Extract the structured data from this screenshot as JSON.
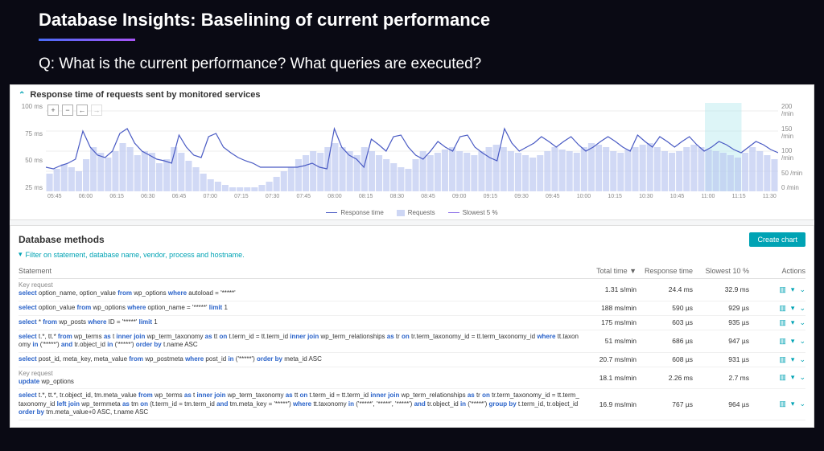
{
  "slide": {
    "title": "Database Insights: Baselining of current performance",
    "question": "Q: What is the current performance? What queries are executed?"
  },
  "chart_panel": {
    "title": "Response time of requests sent by monitored services",
    "y_left_ticks": [
      "100 ms",
      "75 ms",
      "50 ms",
      "25 ms"
    ],
    "y_right_ticks": [
      "200 /min",
      "150 /min",
      "100 /min",
      "50 /min",
      "0 /min"
    ],
    "x_ticks": [
      "05:45",
      "06:00",
      "06:15",
      "06:30",
      "06:45",
      "07:00",
      "07:15",
      "07:30",
      "07:45",
      "08:00",
      "08:15",
      "08:30",
      "08:45",
      "09:00",
      "09:15",
      "09:30",
      "09:45",
      "10:00",
      "10:15",
      "10:30",
      "10:45",
      "11:00",
      "11:15",
      "11:30"
    ],
    "legend": [
      {
        "label": "Response time",
        "type": "line",
        "color": "#4a5bc4"
      },
      {
        "label": "Requests",
        "type": "bar",
        "color": "#b8c4f0"
      },
      {
        "label": "Slowest 5 %",
        "type": "line",
        "color": "#8a6de8"
      }
    ],
    "colors": {
      "bar": "#b8c4f0",
      "line": "#4a5bc4",
      "grid": "#eeeeee",
      "highlight": "#9de3e8",
      "bg": "#ffffff"
    },
    "ylim_left": [
      0,
      100
    ],
    "ylim_right": [
      0,
      200
    ],
    "highlight_range": [
      0.9,
      0.95
    ],
    "bars": [
      22,
      28,
      34,
      30,
      25,
      40,
      55,
      48,
      42,
      50,
      60,
      55,
      45,
      50,
      48,
      35,
      40,
      55,
      48,
      38,
      30,
      22,
      15,
      12,
      8,
      5,
      5,
      5,
      5,
      8,
      12,
      18,
      25,
      30,
      40,
      45,
      50,
      48,
      55,
      60,
      55,
      50,
      45,
      55,
      50,
      45,
      40,
      35,
      30,
      28,
      40,
      50,
      45,
      48,
      52,
      55,
      50,
      48,
      45,
      50,
      55,
      58,
      55,
      50,
      48,
      45,
      42,
      45,
      50,
      55,
      52,
      50,
      48,
      55,
      60,
      58,
      55,
      50,
      48,
      52,
      55,
      58,
      60,
      55,
      50,
      48,
      50,
      55,
      58,
      55,
      52,
      50,
      48,
      45,
      42,
      48,
      55,
      50,
      45,
      40
    ],
    "line": [
      30,
      28,
      32,
      35,
      40,
      75,
      55,
      45,
      42,
      50,
      72,
      78,
      60,
      50,
      45,
      40,
      38,
      35,
      70,
      55,
      45,
      42,
      68,
      72,
      55,
      48,
      42,
      38,
      35,
      30,
      30,
      30,
      30,
      30,
      30,
      32,
      35,
      30,
      28,
      78,
      55,
      45,
      40,
      30,
      65,
      58,
      50,
      68,
      70,
      55,
      45,
      40,
      50,
      62,
      55,
      50,
      68,
      70,
      55,
      48,
      42,
      38,
      78,
      60,
      50,
      55,
      60,
      68,
      62,
      55,
      62,
      68,
      58,
      50,
      55,
      62,
      68,
      62,
      55,
      50,
      70,
      62,
      55,
      68,
      62,
      55,
      62,
      68,
      58,
      50,
      55,
      62,
      58,
      52,
      48,
      55,
      62,
      58,
      52,
      48
    ]
  },
  "methods_panel": {
    "title": "Database methods",
    "create_chart_label": "Create chart",
    "filter_hint": "Filter on statement, database name, vendor, process and hostname.",
    "columns": [
      "Statement",
      "Total time ▼",
      "Response time",
      "Slowest 10 %",
      "Actions"
    ],
    "rows": [
      {
        "key_request": "Key request",
        "sql_parts": [
          {
            "t": "kw",
            "v": "select "
          },
          {
            "t": "",
            "v": "option_name, option_value "
          },
          {
            "t": "kw",
            "v": "from "
          },
          {
            "t": "",
            "v": "wp_options "
          },
          {
            "t": "kw",
            "v": "where "
          },
          {
            "t": "",
            "v": "autoload = '*****'"
          }
        ],
        "total_time": "1.31 s/min",
        "response_time": "24.4 ms",
        "slowest": "32.9 ms"
      },
      {
        "sql_parts": [
          {
            "t": "kw",
            "v": "select "
          },
          {
            "t": "",
            "v": "option_value "
          },
          {
            "t": "kw",
            "v": "from "
          },
          {
            "t": "",
            "v": "wp_options "
          },
          {
            "t": "kw",
            "v": "where "
          },
          {
            "t": "",
            "v": "option_name = '*****' "
          },
          {
            "t": "kw",
            "v": "limit "
          },
          {
            "t": "",
            "v": "1"
          }
        ],
        "total_time": "188 ms/min",
        "response_time": "590 µs",
        "slowest": "929 µs"
      },
      {
        "sql_parts": [
          {
            "t": "kw",
            "v": "select "
          },
          {
            "t": "",
            "v": "* "
          },
          {
            "t": "kw",
            "v": "from "
          },
          {
            "t": "",
            "v": "wp_posts "
          },
          {
            "t": "kw",
            "v": "where "
          },
          {
            "t": "",
            "v": "ID = '*****' "
          },
          {
            "t": "kw",
            "v": "limit "
          },
          {
            "t": "",
            "v": "1"
          }
        ],
        "total_time": "175 ms/min",
        "response_time": "603 µs",
        "slowest": "935 µs"
      },
      {
        "sql_parts": [
          {
            "t": "kw",
            "v": "select "
          },
          {
            "t": "",
            "v": "t.*, tt.* "
          },
          {
            "t": "kw",
            "v": "from "
          },
          {
            "t": "",
            "v": "wp_terms "
          },
          {
            "t": "kw",
            "v": "as "
          },
          {
            "t": "",
            "v": "t "
          },
          {
            "t": "kw",
            "v": "inner join "
          },
          {
            "t": "",
            "v": "wp_term_taxonomy "
          },
          {
            "t": "kw",
            "v": "as "
          },
          {
            "t": "",
            "v": "tt "
          },
          {
            "t": "kw",
            "v": "on "
          },
          {
            "t": "",
            "v": "t.term_id = tt.term_id "
          },
          {
            "t": "kw",
            "v": "inner join "
          },
          {
            "t": "",
            "v": "wp_term_relationships "
          },
          {
            "t": "kw",
            "v": "as "
          },
          {
            "t": "",
            "v": "tr "
          },
          {
            "t": "kw",
            "v": "on "
          },
          {
            "t": "",
            "v": "tr.term_taxonomy_id = tt.term_taxonomy_id "
          },
          {
            "t": "kw",
            "v": "where "
          },
          {
            "t": "",
            "v": "tt.taxonomy "
          },
          {
            "t": "kw",
            "v": "in "
          },
          {
            "t": "",
            "v": "('*****') "
          },
          {
            "t": "kw",
            "v": "and "
          },
          {
            "t": "",
            "v": "tr.object_id "
          },
          {
            "t": "kw",
            "v": "in "
          },
          {
            "t": "",
            "v": "('*****') "
          },
          {
            "t": "kw",
            "v": "order by "
          },
          {
            "t": "",
            "v": "t.name ASC"
          }
        ],
        "total_time": "51 ms/min",
        "response_time": "686 µs",
        "slowest": "947 µs"
      },
      {
        "sql_parts": [
          {
            "t": "kw",
            "v": "select "
          },
          {
            "t": "",
            "v": "post_id, meta_key, meta_value "
          },
          {
            "t": "kw",
            "v": "from "
          },
          {
            "t": "",
            "v": "wp_postmeta "
          },
          {
            "t": "kw",
            "v": "where "
          },
          {
            "t": "",
            "v": "post_id "
          },
          {
            "t": "kw",
            "v": "in "
          },
          {
            "t": "",
            "v": "('*****') "
          },
          {
            "t": "kw",
            "v": "order by "
          },
          {
            "t": "",
            "v": "meta_id ASC"
          }
        ],
        "total_time": "20.7 ms/min",
        "response_time": "608 µs",
        "slowest": "931 µs"
      },
      {
        "key_request": "Key request",
        "sql_parts": [
          {
            "t": "kw",
            "v": "update "
          },
          {
            "t": "",
            "v": "wp_options"
          }
        ],
        "total_time": "18.1 ms/min",
        "response_time": "2.26 ms",
        "slowest": "2.7 ms"
      },
      {
        "sql_parts": [
          {
            "t": "kw",
            "v": "select "
          },
          {
            "t": "",
            "v": "t.*, tt.*, tr.object_id, tm.meta_value "
          },
          {
            "t": "kw",
            "v": "from "
          },
          {
            "t": "",
            "v": "wp_terms "
          },
          {
            "t": "kw",
            "v": "as "
          },
          {
            "t": "",
            "v": "t "
          },
          {
            "t": "kw",
            "v": "inner join "
          },
          {
            "t": "",
            "v": "wp_term_taxonomy "
          },
          {
            "t": "kw",
            "v": "as "
          },
          {
            "t": "",
            "v": "tt "
          },
          {
            "t": "kw",
            "v": "on "
          },
          {
            "t": "",
            "v": "t.term_id = tt.term_id "
          },
          {
            "t": "kw",
            "v": "inner join "
          },
          {
            "t": "",
            "v": "wp_term_relationships "
          },
          {
            "t": "kw",
            "v": "as "
          },
          {
            "t": "",
            "v": "tr "
          },
          {
            "t": "kw",
            "v": "on "
          },
          {
            "t": "",
            "v": "tr.term_taxonomy_id = tt.term_taxonomy_id "
          },
          {
            "t": "kw",
            "v": "left join "
          },
          {
            "t": "",
            "v": "wp_termmeta "
          },
          {
            "t": "kw",
            "v": "as "
          },
          {
            "t": "",
            "v": "tm "
          },
          {
            "t": "kw",
            "v": "on "
          },
          {
            "t": "",
            "v": "(t.term_id = tm.term_id "
          },
          {
            "t": "kw",
            "v": "and "
          },
          {
            "t": "",
            "v": "tm.meta_key = '*****') "
          },
          {
            "t": "kw",
            "v": "where "
          },
          {
            "t": "",
            "v": "tt.taxonomy "
          },
          {
            "t": "kw",
            "v": "in "
          },
          {
            "t": "",
            "v": "('*****', '*****', '*****') "
          },
          {
            "t": "kw",
            "v": "and "
          },
          {
            "t": "",
            "v": "tr.object_id "
          },
          {
            "t": "kw",
            "v": "in "
          },
          {
            "t": "",
            "v": "('*****') "
          },
          {
            "t": "kw",
            "v": "group by "
          },
          {
            "t": "",
            "v": "t.term_id, tr.object_id "
          },
          {
            "t": "kw",
            "v": "order by "
          },
          {
            "t": "",
            "v": "tm.meta_value+0 ASC, t.name ASC"
          }
        ],
        "total_time": "16.9 ms/min",
        "response_time": "767 µs",
        "slowest": "964 µs"
      }
    ]
  }
}
